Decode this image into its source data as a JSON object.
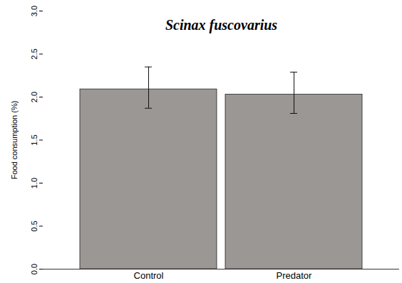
{
  "chart_data": {
    "type": "bar",
    "title": "Scinax fuscovarius",
    "y_label": "Food consumption (%)",
    "categories": [
      "Control",
      "Predator"
    ],
    "values": [
      2.09,
      2.03
    ],
    "error_lower": [
      1.87,
      1.81
    ],
    "error_upper": [
      2.35,
      2.29
    ],
    "color": "#9b9794",
    "ylim": [
      0,
      3
    ],
    "yticks": [
      {
        "value": 0,
        "label": "0.0"
      },
      0.5,
      {
        "value": 1,
        "label": "1.0"
      },
      1.5,
      {
        "value": 2,
        "label": "2.0"
      },
      2.5,
      {
        "value": 3,
        "label": "3.0"
      }
    ],
    "grid": false
  }
}
